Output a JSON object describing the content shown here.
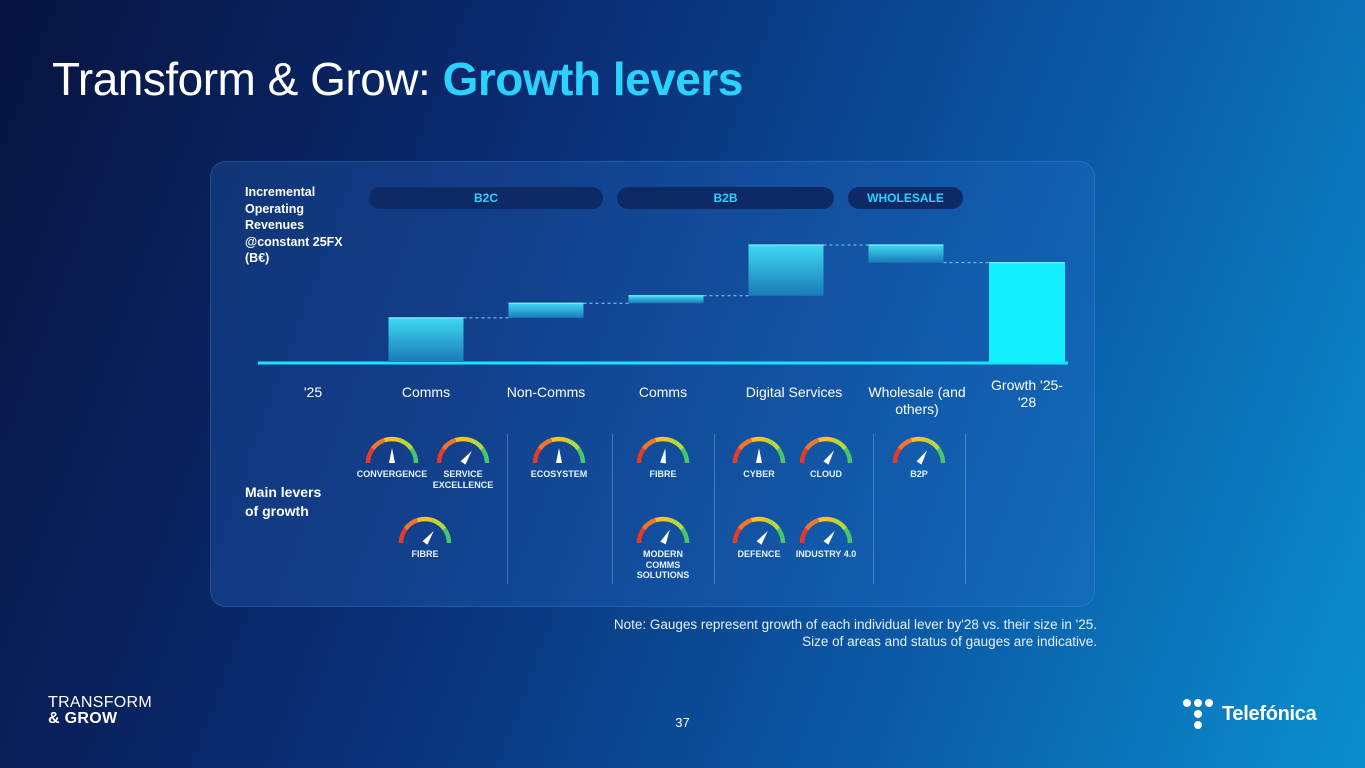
{
  "title": {
    "main": "Transform & Grow: ",
    "accent": "Growth levers"
  },
  "chart_data": {
    "type": "waterfall",
    "ylabel": "Incremental Operating Revenues @constant 25FX (B€)",
    "segments": [
      "B2C",
      "B2B",
      "WHOLESALE"
    ],
    "categories": [
      "'25",
      "Comms",
      "Non-Comms",
      "Comms",
      "Digital Services",
      "Wholesale (and others)",
      "Growth '25-'28"
    ],
    "bars": [
      {
        "category": "'25",
        "kind": "base",
        "start": 0,
        "end": 0
      },
      {
        "category": "Comms",
        "segment": "B2C",
        "kind": "increase",
        "start": 0,
        "end": 1.0
      },
      {
        "category": "Non-Comms",
        "segment": "B2C",
        "kind": "increase",
        "start": 1.0,
        "end": 1.33
      },
      {
        "category": "Comms",
        "segment": "B2B",
        "kind": "increase",
        "start": 1.33,
        "end": 1.5
      },
      {
        "category": "Digital Services",
        "segment": "B2B",
        "kind": "increase",
        "start": 1.5,
        "end": 2.65
      },
      {
        "category": "Wholesale (and others)",
        "segment": "WHOLESALE",
        "kind": "decrease",
        "start": 2.65,
        "end": 2.25
      },
      {
        "category": "Growth '25-'28",
        "kind": "total",
        "start": 0,
        "end": 2.25
      }
    ],
    "ylim": [
      0,
      2.7
    ],
    "note": "Size of areas and status of gauges are indicative."
  },
  "levers": {
    "label": "Main levers of growth",
    "gauges": [
      {
        "name": "CONVERGENCE",
        "level": 0.5
      },
      {
        "name": "SERVICE EXCELLENCE",
        "level": 0.7
      },
      {
        "name": "FIBRE",
        "level": 0.7
      },
      {
        "name": "ECOSYSTEM",
        "level": 0.5
      },
      {
        "name": "FIBRE",
        "level": 0.55
      },
      {
        "name": "MODERN COMMS SOLUTIONS",
        "level": 0.65
      },
      {
        "name": "CYBER",
        "level": 0.5
      },
      {
        "name": "CLOUD",
        "level": 0.68
      },
      {
        "name": "DEFENCE",
        "level": 0.7
      },
      {
        "name": "INDUSTRY 4.0",
        "level": 0.7
      },
      {
        "name": "B2P",
        "level": 0.68
      }
    ]
  },
  "note": {
    "line1": "Note: Gauges represent growth of each individual lever by'28 vs. their size in '25.",
    "line2": "Size of areas and status of gauges are indicative."
  },
  "footer": {
    "brand_line1": "TRANSFORM",
    "brand_line2": "& GROW",
    "page": "37",
    "company": "Telefónica"
  },
  "colors": {
    "accent": "#2ad3ff",
    "bar_top": "#3ed9f2",
    "bar_bottom": "#1a7ab8",
    "total": "#12f0ff",
    "axis": "#18e4ff"
  }
}
